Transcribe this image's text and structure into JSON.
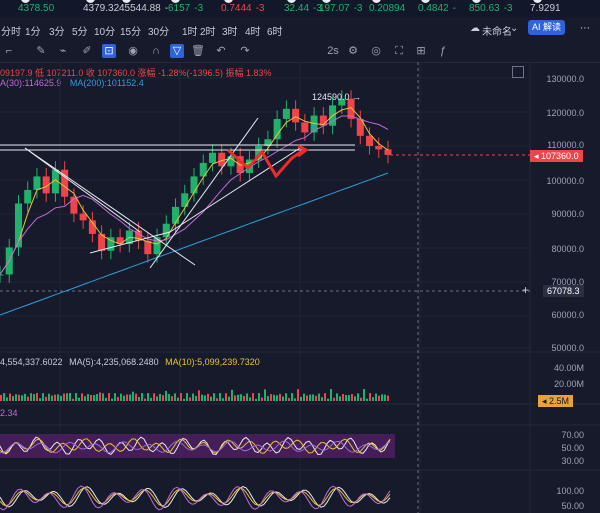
{
  "ticker": {
    "items": [
      {
        "value": "4378.50",
        "change": "",
        "color": "#20b26c"
      },
      {
        "value": "4379.32",
        "change": "",
        "color": "#c9ccd6"
      },
      {
        "value": "45544.88",
        "change": "-",
        "color": "#c9ccd6"
      },
      {
        "value": "6157",
        "change": "-3",
        "color": "#20b26c"
      },
      {
        "value": "0.7444",
        "change": "-3",
        "color": "#ef454a"
      },
      {
        "value": "32.44",
        "change": "-3",
        "color": "#20b26c"
      },
      {
        "value": "197.07",
        "change": "-3",
        "color": "#20b26c"
      },
      {
        "value": "0.20894",
        "change": "",
        "color": "#20b26c"
      },
      {
        "value": "0.4842",
        "change": "-",
        "color": "#20b26c"
      },
      {
        "value": "850.63",
        "change": "-3",
        "color": "#20b26c"
      },
      {
        "value": "7.9291",
        "change": "",
        "color": "#c9ccd6"
      }
    ]
  },
  "timeframes": [
    "分时",
    "1分",
    "3分",
    "5分",
    "10分",
    "15分",
    "30分",
    "1时",
    "2时",
    "3时",
    "4时",
    "6时"
  ],
  "toolbar": {
    "interval": "2s",
    "layout_name": "未命名",
    "ai_label": "AI 解读"
  },
  "info": {
    "ohlc": "09197.9  低 107211.0  收 107360.0  涨幅 -1.28%(-1396.5)  振幅 1.83%",
    "ma30": "A(30):114625.9",
    "ma200": "MA(200):101152.4",
    "vol": "4,554,337.6022",
    "vol_ma5": "MA(5):4,235,068.2480",
    "vol_ma10": "MA(10):5,099,239.7320",
    "ind_value": "2.34"
  },
  "colors": {
    "up": "#20b26c",
    "down": "#ef454a",
    "accent": "#2f63d6",
    "ma30": "#c26bd8",
    "ma200": "#2e9fd6",
    "ma_short": "#e8c23a"
  },
  "price_axis": {
    "labels": [
      "130000.0",
      "120000.0",
      "110000.0",
      "100000.0",
      "90000.0",
      "80000.0",
      "70000.0",
      "60000.0",
      "50000.0"
    ],
    "last_price": "107360.0",
    "crosshair_price": "67078.3",
    "high_marker": "124590.0"
  },
  "volume_axis": {
    "labels": [
      "40.00M",
      "20.00M"
    ],
    "current": "2.5M"
  },
  "rsi_axis": {
    "labels": [
      "70.00",
      "50.00",
      "30.00"
    ]
  },
  "kdj_axis": {
    "labels": [
      "100.00",
      "50.00"
    ]
  }
}
